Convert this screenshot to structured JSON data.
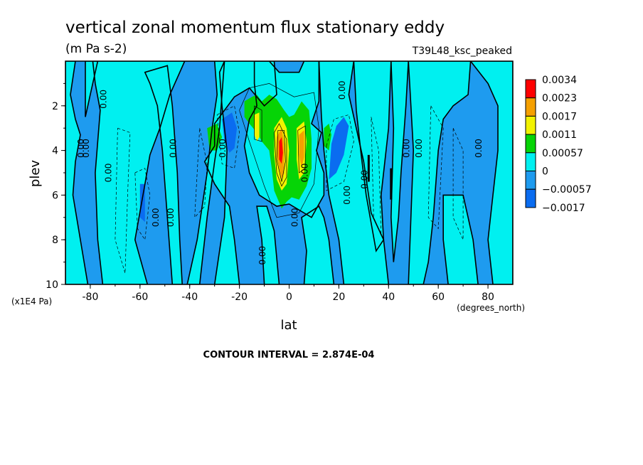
{
  "title": "vertical zonal momentum flux stationary eddy",
  "units": "(m Pa s-2)",
  "run_label": "T39L48_ksc_peaked",
  "contour_interval": "CONTOUR INTERVAL = 2.874E-04",
  "colors": {
    "c_neg2": "#0a6cf0",
    "c_neg1": "#1e9bef",
    "c_zero": "#00f0f0",
    "c_pos1": "#06d406",
    "c_pos2": "#f2f200",
    "c_pos3": "#f5a000",
    "c_pos4": "#ff0000"
  },
  "chart_data": {
    "type": "contour",
    "title": "vertical zonal momentum flux stationary eddy",
    "subtitle": "(m Pa s-2)",
    "xlabel": "lat",
    "xunit": "(degrees_north)",
    "ylabel": "plev",
    "yunit": "(x1E4 Pa)",
    "xlim": [
      -90,
      90
    ],
    "ylim": [
      10,
      0
    ],
    "xticks": [
      "-80",
      "-60",
      "-40",
      "-20",
      "0",
      "20",
      "40",
      "60",
      "80"
    ],
    "yticks": [
      "2",
      "4",
      "6",
      "8",
      "10"
    ],
    "contour_label": "0.00",
    "legend": {
      "levels": [
        "0.0034",
        "0.0023",
        "0.0017",
        "0.0011",
        "0.00057",
        "0",
        "−0.00057",
        "−0.0017"
      ],
      "colors": [
        "#ff0000",
        "#f5a000",
        "#f2f200",
        "#06d406",
        "#00f0f0",
        "#1e9bef",
        "#0a6cf0"
      ]
    },
    "zero_contour_labels": [
      {
        "lat": -84,
        "plev": 3.9
      },
      {
        "lat": -82,
        "plev": 3.9
      },
      {
        "lat": -75,
        "plev": 1.7
      },
      {
        "lat": -73,
        "plev": 5.0
      },
      {
        "lat": -54,
        "plev": 7.0
      },
      {
        "lat": -48,
        "plev": 7.0
      },
      {
        "lat": -47,
        "plev": 3.9
      },
      {
        "lat": -27,
        "plev": 3.9
      },
      {
        "lat": -11,
        "plev": 8.7
      },
      {
        "lat": 2,
        "plev": 7.0
      },
      {
        "lat": 6,
        "plev": 5.0
      },
      {
        "lat": 21,
        "plev": 1.3
      },
      {
        "lat": 23,
        "plev": 6.0
      },
      {
        "lat": 30,
        "plev": 5.3
      },
      {
        "lat": 47,
        "plev": 3.9
      },
      {
        "lat": 52,
        "plev": 3.9
      },
      {
        "lat": 76,
        "plev": 3.9
      }
    ],
    "extrema": [
      {
        "lat": -2,
        "plev": 4.2,
        "value": 0.0034,
        "sign": "positive"
      },
      {
        "lat": 6,
        "plev": 4.0,
        "value": 0.0023,
        "sign": "positive"
      },
      {
        "lat": -13,
        "plev": 2.8,
        "value": 0.0017,
        "sign": "positive"
      },
      {
        "lat": -24,
        "plev": 3.3,
        "value": -0.0017,
        "sign": "negative"
      },
      {
        "lat": 20,
        "plev": 3.9,
        "value": -0.0017,
        "sign": "negative"
      },
      {
        "lat": -59,
        "plev": 6.2,
        "value": -0.0017,
        "sign": "negative"
      }
    ]
  }
}
